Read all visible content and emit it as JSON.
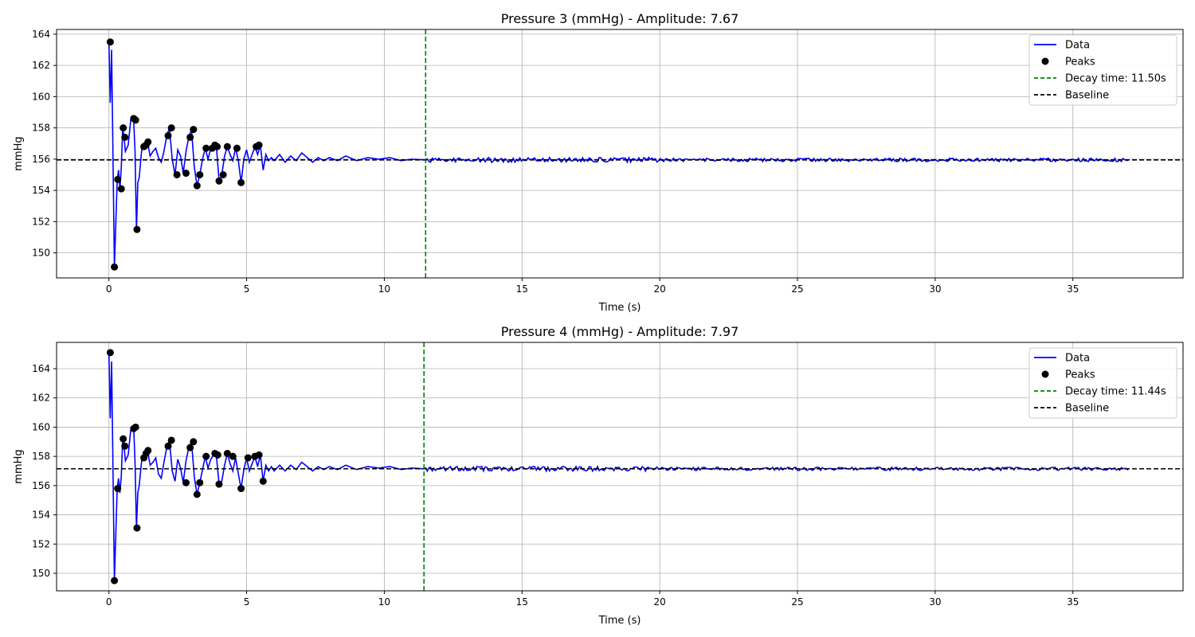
{
  "chart_data": [
    {
      "type": "line",
      "title": "Pressure 3 (mmHg) - Amplitude: 7.67",
      "xlabel": "Time (s)",
      "ylabel": "mmHg",
      "xlim": [
        -1.9,
        39.0
      ],
      "ylim": [
        148.4,
        164.3
      ],
      "xticks": [
        0,
        5,
        10,
        15,
        20,
        25,
        30,
        35
      ],
      "yticks": [
        150,
        152,
        154,
        156,
        158,
        160,
        162,
        164
      ],
      "grid": true,
      "legend": {
        "position": "top-right",
        "entries": [
          {
            "label": "Data",
            "kind": "line",
            "color": "#0000ff"
          },
          {
            "label": "Peaks",
            "kind": "marker",
            "color": "#000000"
          },
          {
            "label": "Decay time: 11.50s",
            "kind": "dashed",
            "color": "#008000"
          },
          {
            "label": "Baseline",
            "kind": "dashed",
            "color": "#000000"
          }
        ]
      },
      "baseline": 155.95,
      "decay_time": 11.5,
      "tail_end": 37.0,
      "series": [
        {
          "name": "Data",
          "color": "#0000ff",
          "x": [
            0.0,
            0.05,
            0.1,
            0.2,
            0.3,
            0.35,
            0.4,
            0.45,
            0.5,
            0.55,
            0.6,
            0.7,
            0.8,
            0.9,
            0.95,
            1.0,
            1.05,
            1.1,
            1.2,
            1.3,
            1.4,
            1.5,
            1.6,
            1.7,
            1.8,
            1.9,
            2.0,
            2.1,
            2.2,
            2.3,
            2.4,
            2.5,
            2.6,
            2.7,
            2.8,
            2.9,
            3.0,
            3.1,
            3.2,
            3.3,
            3.4,
            3.5,
            3.6,
            3.7,
            3.8,
            3.9,
            4.0,
            4.1,
            4.2,
            4.3,
            4.4,
            4.5,
            4.6,
            4.7,
            4.8,
            4.9,
            5.0,
            5.1,
            5.2,
            5.3,
            5.4,
            5.5,
            5.6,
            5.7,
            5.8,
            5.9,
            6.0,
            6.2,
            6.4,
            6.6,
            6.8,
            7.0,
            7.2,
            7.4,
            7.6,
            7.8,
            8.0,
            8.3,
            8.6,
            9.0,
            9.4,
            9.8,
            10.2,
            10.6,
            11.0,
            11.5
          ],
          "y": [
            163.5,
            159.6,
            163.0,
            149.1,
            154.6,
            155.3,
            154.1,
            155.4,
            158.0,
            157.4,
            156.5,
            156.9,
            158.6,
            158.5,
            156.5,
            151.5,
            154.5,
            154.8,
            156.8,
            156.9,
            157.1,
            156.2,
            156.5,
            156.7,
            156.1,
            155.8,
            156.5,
            157.5,
            158.0,
            156.0,
            155.0,
            156.6,
            156.2,
            155.1,
            156.5,
            157.4,
            157.9,
            155.5,
            154.3,
            155.0,
            156.0,
            156.7,
            156.0,
            156.7,
            156.8,
            156.9,
            154.6,
            155.0,
            156.2,
            156.8,
            156.3,
            155.9,
            156.7,
            155.9,
            154.5,
            156.0,
            156.6,
            155.8,
            156.3,
            156.8,
            156.3,
            156.9,
            155.3,
            156.3,
            155.9,
            156.1,
            155.9,
            156.3,
            155.8,
            156.2,
            155.9,
            156.4,
            156.1,
            155.8,
            156.1,
            155.9,
            156.1,
            155.9,
            156.2,
            155.9,
            156.1,
            156.0,
            156.1,
            155.9,
            156.0,
            155.95
          ]
        },
        {
          "name": "Peaks",
          "color": "#000000",
          "x": [
            0.05,
            0.2,
            0.32,
            0.45,
            0.52,
            0.58,
            0.9,
            0.97,
            1.02,
            1.27,
            1.35,
            1.42,
            2.15,
            2.27,
            2.47,
            2.8,
            2.95,
            3.07,
            3.2,
            3.3,
            3.53,
            3.75,
            3.85,
            3.93,
            4.0,
            4.15,
            4.3,
            4.65,
            4.8,
            5.35,
            5.45
          ],
          "y": [
            163.5,
            149.1,
            154.7,
            154.1,
            158.0,
            157.4,
            158.6,
            158.5,
            151.5,
            156.8,
            156.9,
            157.1,
            157.5,
            158.0,
            155.0,
            155.1,
            157.4,
            157.9,
            154.3,
            155.0,
            156.7,
            156.7,
            156.9,
            156.8,
            154.6,
            155.0,
            156.8,
            156.7,
            154.5,
            156.8,
            156.9
          ]
        }
      ]
    },
    {
      "type": "line",
      "title": "Pressure 4 (mmHg) - Amplitude: 7.97",
      "xlabel": "Time (s)",
      "ylabel": "mmHg",
      "xlim": [
        -1.9,
        39.0
      ],
      "ylim": [
        148.8,
        165.8
      ],
      "xticks": [
        0,
        5,
        10,
        15,
        20,
        25,
        30,
        35
      ],
      "yticks": [
        150,
        152,
        154,
        156,
        158,
        160,
        162,
        164
      ],
      "grid": true,
      "legend": {
        "position": "top-right",
        "entries": [
          {
            "label": "Data",
            "kind": "line",
            "color": "#0000ff"
          },
          {
            "label": "Peaks",
            "kind": "marker",
            "color": "#000000"
          },
          {
            "label": "Decay time: 11.44s",
            "kind": "dashed",
            "color": "#008000"
          },
          {
            "label": "Baseline",
            "kind": "dashed",
            "color": "#000000"
          }
        ]
      },
      "baseline": 157.15,
      "decay_time": 11.44,
      "tail_end": 37.0,
      "series": [
        {
          "name": "Data",
          "color": "#0000ff",
          "x": [
            0.0,
            0.05,
            0.1,
            0.2,
            0.3,
            0.35,
            0.4,
            0.45,
            0.5,
            0.55,
            0.6,
            0.7,
            0.8,
            0.9,
            0.95,
            1.0,
            1.05,
            1.1,
            1.2,
            1.3,
            1.4,
            1.5,
            1.6,
            1.7,
            1.8,
            1.9,
            2.0,
            2.1,
            2.2,
            2.3,
            2.4,
            2.5,
            2.6,
            2.7,
            2.8,
            2.9,
            3.0,
            3.1,
            3.2,
            3.3,
            3.4,
            3.5,
            3.6,
            3.7,
            3.8,
            3.9,
            4.0,
            4.1,
            4.2,
            4.3,
            4.4,
            4.5,
            4.6,
            4.7,
            4.8,
            4.9,
            5.0,
            5.1,
            5.2,
            5.3,
            5.4,
            5.5,
            5.6,
            5.7,
            5.8,
            5.9,
            6.0,
            6.2,
            6.4,
            6.6,
            6.8,
            7.0,
            7.2,
            7.4,
            7.6,
            7.8,
            8.0,
            8.3,
            8.6,
            9.0,
            9.4,
            9.8,
            10.2,
            10.6,
            11.0,
            11.44
          ],
          "y": [
            165.1,
            160.6,
            164.5,
            149.5,
            155.8,
            156.5,
            155.5,
            156.6,
            159.2,
            158.7,
            157.7,
            158.1,
            159.9,
            160.0,
            157.6,
            153.1,
            155.5,
            156.0,
            157.9,
            158.2,
            158.4,
            157.4,
            157.6,
            157.9,
            156.8,
            156.5,
            157.6,
            158.6,
            159.1,
            157.0,
            156.3,
            157.8,
            157.2,
            156.2,
            157.7,
            158.6,
            159.0,
            156.6,
            155.4,
            156.2,
            157.1,
            158.0,
            157.2,
            157.8,
            158.1,
            158.1,
            156.1,
            156.3,
            157.4,
            158.2,
            157.5,
            157.0,
            157.9,
            156.8,
            155.8,
            157.1,
            157.9,
            157.0,
            157.5,
            158.0,
            157.3,
            158.1,
            156.3,
            157.4,
            157.0,
            157.3,
            157.0,
            157.4,
            157.0,
            157.4,
            157.1,
            157.6,
            157.3,
            157.0,
            157.3,
            157.1,
            157.3,
            157.1,
            157.4,
            157.1,
            157.3,
            157.2,
            157.3,
            157.1,
            157.2,
            157.15
          ]
        },
        {
          "name": "Peaks",
          "color": "#000000",
          "x": [
            0.05,
            0.2,
            0.32,
            0.52,
            0.58,
            0.9,
            0.97,
            1.02,
            1.27,
            1.35,
            1.42,
            2.15,
            2.27,
            2.8,
            2.95,
            3.07,
            3.2,
            3.3,
            3.53,
            3.85,
            3.95,
            4.0,
            4.3,
            4.5,
            4.8,
            5.05,
            5.3,
            5.45,
            5.6
          ],
          "y": [
            165.1,
            149.5,
            155.8,
            159.2,
            158.7,
            159.9,
            160.0,
            153.1,
            157.9,
            158.2,
            158.4,
            158.7,
            159.1,
            156.2,
            158.6,
            159.0,
            155.4,
            156.2,
            158.0,
            158.2,
            158.1,
            156.1,
            158.2,
            158.0,
            155.8,
            157.9,
            158.0,
            158.1,
            156.3
          ]
        }
      ]
    }
  ]
}
